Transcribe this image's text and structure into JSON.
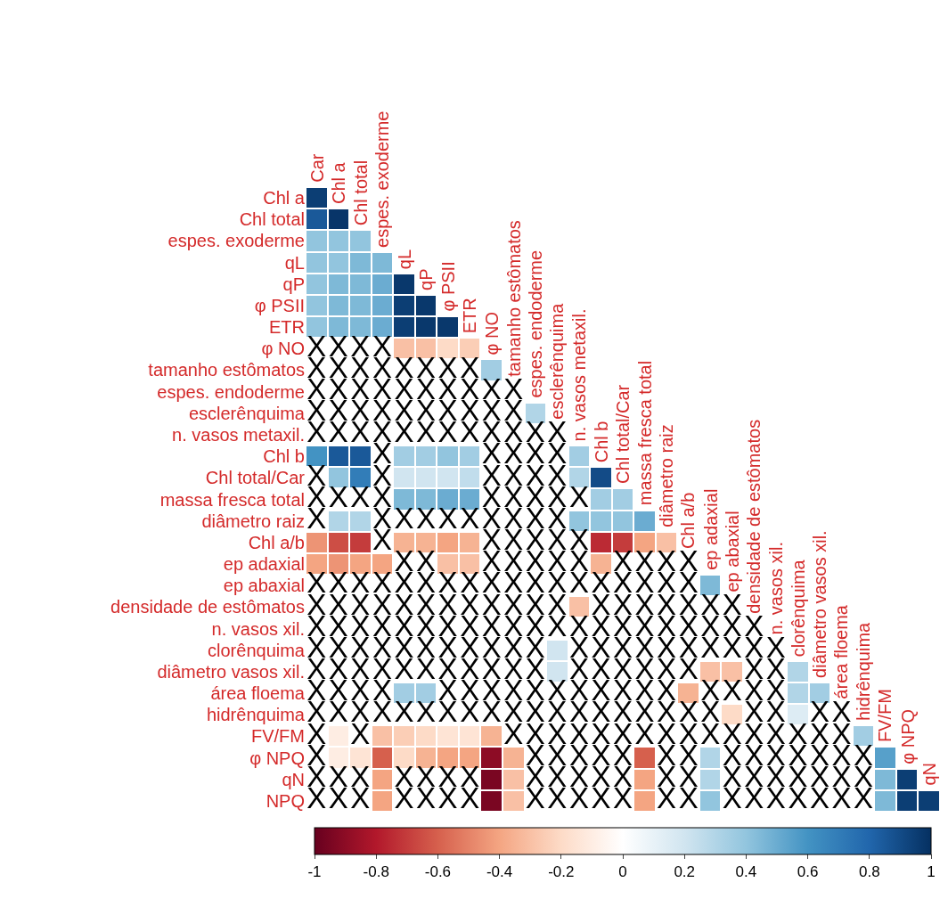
{
  "chart_data": {
    "type": "heatmap",
    "categories": [
      "Car",
      "Chl a",
      "Chl total",
      "espes. exoderme",
      "qL",
      "qP",
      "φ PSII",
      "ETR",
      "φ NO",
      "tamanho estômatos",
      "espes. endoderme",
      "esclerênquima",
      "n. vasos metaxil.",
      "Chl b",
      "Chl total/Car",
      "massa fresca total",
      "diâmetro raiz",
      "Chl a/b",
      "ep adaxial",
      "ep abaxial",
      "densidade de estômatos",
      "n. vasos xil.",
      "clorênquima",
      "diâmetro vasos xil.",
      "área floema",
      "hidrênquima",
      "FV/FM",
      "φ NPQ",
      "qN"
    ],
    "y_categories": [
      "Chl a",
      "Chl total",
      "espes. exoderme",
      "qL",
      "qP",
      "φ PSII",
      "ETR",
      "φ NO",
      "tamanho estômatos",
      "espes. endoderme",
      "esclerênquima",
      "n. vasos metaxil.",
      "Chl b",
      "Chl total/Car",
      "massa fresca total",
      "diâmetro raiz",
      "Chl a/b",
      "ep adaxial",
      "ep abaxial",
      "densidade de estômatos",
      "n. vasos xil.",
      "clorênquima",
      "diâmetro vasos xil.",
      "área floema",
      "hidrênquima",
      "FV/FM",
      "φ NPQ",
      "qN",
      "NPQ"
    ],
    "cells": [
      [
        0.95,
        null,
        null,
        null,
        null,
        null,
        null,
        null,
        null,
        null,
        null,
        null,
        null,
        null,
        null,
        null,
        null,
        null,
        null,
        null,
        null,
        null,
        null,
        null,
        null,
        null,
        null,
        null,
        null
      ],
      [
        0.85,
        0.98,
        null,
        null,
        null,
        null,
        null,
        null,
        null,
        null,
        null,
        null,
        null,
        null,
        null,
        null,
        null,
        null,
        null,
        null,
        null,
        null,
        null,
        null,
        null,
        null,
        null,
        null,
        null
      ],
      [
        0.4,
        0.4,
        0.4,
        null,
        null,
        null,
        null,
        null,
        null,
        null,
        null,
        null,
        null,
        null,
        null,
        null,
        null,
        null,
        null,
        null,
        null,
        null,
        null,
        null,
        null,
        null,
        null,
        null,
        null
      ],
      [
        0.4,
        0.4,
        0.45,
        0.45,
        null,
        null,
        null,
        null,
        null,
        null,
        null,
        null,
        null,
        null,
        null,
        null,
        null,
        null,
        null,
        null,
        null,
        null,
        null,
        null,
        null,
        null,
        null,
        null,
        null
      ],
      [
        0.4,
        0.45,
        0.45,
        0.5,
        0.97,
        null,
        null,
        null,
        null,
        null,
        null,
        null,
        null,
        null,
        null,
        null,
        null,
        null,
        null,
        null,
        null,
        null,
        null,
        null,
        null,
        null,
        null,
        null,
        null
      ],
      [
        0.4,
        0.45,
        0.45,
        0.5,
        0.95,
        0.97,
        null,
        null,
        null,
        null,
        null,
        null,
        null,
        null,
        null,
        null,
        null,
        null,
        null,
        null,
        null,
        null,
        null,
        null,
        null,
        null,
        null,
        null,
        null
      ],
      [
        0.4,
        0.45,
        0.45,
        0.5,
        0.95,
        0.97,
        0.97,
        null,
        null,
        null,
        null,
        null,
        null,
        null,
        null,
        null,
        null,
        null,
        null,
        null,
        null,
        null,
        null,
        null,
        null,
        null,
        null,
        null,
        null
      ],
      [
        null,
        null,
        null,
        null,
        -0.3,
        -0.3,
        -0.2,
        -0.25,
        null,
        null,
        null,
        null,
        null,
        null,
        null,
        null,
        null,
        null,
        null,
        null,
        null,
        null,
        null,
        null,
        null,
        null,
        null,
        null,
        null
      ],
      [
        null,
        null,
        null,
        null,
        null,
        null,
        null,
        null,
        0.35,
        null,
        null,
        null,
        null,
        null,
        null,
        null,
        null,
        null,
        null,
        null,
        null,
        null,
        null,
        null,
        null,
        null,
        null,
        null,
        null
      ],
      [
        null,
        null,
        null,
        null,
        null,
        null,
        null,
        null,
        null,
        null,
        null,
        null,
        null,
        null,
        null,
        null,
        null,
        null,
        null,
        null,
        null,
        null,
        null,
        null,
        null,
        null,
        null,
        null,
        null
      ],
      [
        null,
        null,
        null,
        null,
        null,
        null,
        null,
        null,
        null,
        null,
        0.3,
        null,
        null,
        null,
        null,
        null,
        null,
        null,
        null,
        null,
        null,
        null,
        null,
        null,
        null,
        null,
        null,
        null,
        null
      ],
      [
        null,
        null,
        null,
        null,
        null,
        null,
        null,
        null,
        null,
        null,
        null,
        null,
        null,
        null,
        null,
        null,
        null,
        null,
        null,
        null,
        null,
        null,
        null,
        null,
        null,
        null,
        null,
        null,
        null
      ],
      [
        0.6,
        0.85,
        0.85,
        null,
        0.35,
        0.35,
        0.4,
        0.35,
        null,
        null,
        null,
        null,
        0.35,
        null,
        null,
        null,
        null,
        null,
        null,
        null,
        null,
        null,
        null,
        null,
        null,
        null,
        null,
        null,
        null
      ],
      [
        null,
        0.4,
        0.7,
        null,
        0.2,
        0.2,
        0.2,
        0.25,
        null,
        null,
        null,
        null,
        0.3,
        0.9,
        null,
        null,
        null,
        null,
        null,
        null,
        null,
        null,
        null,
        null,
        null,
        null,
        null,
        null,
        null
      ],
      [
        null,
        null,
        null,
        null,
        0.45,
        0.45,
        0.5,
        0.5,
        null,
        null,
        null,
        null,
        null,
        0.35,
        0.35,
        null,
        null,
        null,
        null,
        null,
        null,
        null,
        null,
        null,
        null,
        null,
        null,
        null,
        null
      ],
      [
        null,
        0.3,
        0.3,
        null,
        null,
        null,
        null,
        null,
        null,
        null,
        null,
        null,
        0.4,
        0.4,
        0.4,
        0.5,
        null,
        null,
        null,
        null,
        null,
        null,
        null,
        null,
        null,
        null,
        null,
        null,
        null
      ],
      [
        -0.45,
        -0.65,
        -0.7,
        null,
        -0.35,
        -0.35,
        -0.4,
        -0.35,
        null,
        null,
        null,
        null,
        null,
        -0.75,
        -0.7,
        -0.4,
        -0.3,
        null,
        null,
        null,
        null,
        null,
        null,
        null,
        null,
        null,
        null,
        null,
        null
      ],
      [
        -0.4,
        -0.45,
        -0.4,
        -0.4,
        null,
        null,
        -0.3,
        -0.3,
        null,
        null,
        null,
        null,
        null,
        -0.35,
        null,
        null,
        null,
        null,
        null,
        null,
        null,
        null,
        null,
        null,
        null,
        null,
        null,
        null,
        null
      ],
      [
        null,
        null,
        null,
        null,
        null,
        null,
        null,
        null,
        null,
        null,
        null,
        null,
        null,
        null,
        null,
        null,
        null,
        null,
        0.45,
        null,
        null,
        null,
        null,
        null,
        null,
        null,
        null,
        null,
        null
      ],
      [
        null,
        null,
        null,
        null,
        null,
        null,
        null,
        null,
        null,
        null,
        null,
        null,
        -0.3,
        null,
        null,
        null,
        null,
        null,
        null,
        null,
        null,
        null,
        null,
        null,
        null,
        null,
        null,
        null,
        null
      ],
      [
        null,
        null,
        null,
        null,
        null,
        null,
        null,
        null,
        null,
        null,
        null,
        null,
        null,
        null,
        null,
        null,
        null,
        null,
        null,
        null,
        null,
        null,
        null,
        null,
        null,
        null,
        null,
        null,
        null
      ],
      [
        null,
        null,
        null,
        null,
        null,
        null,
        null,
        null,
        null,
        null,
        null,
        0.2,
        null,
        null,
        null,
        null,
        null,
        null,
        null,
        null,
        null,
        null,
        null,
        null,
        null,
        null,
        null,
        null,
        null
      ],
      [
        null,
        null,
        null,
        null,
        null,
        null,
        null,
        null,
        null,
        null,
        null,
        0.2,
        null,
        null,
        null,
        null,
        null,
        null,
        -0.3,
        -0.3,
        null,
        null,
        0.3,
        null,
        null,
        null,
        null,
        null,
        null
      ],
      [
        null,
        null,
        null,
        null,
        0.35,
        0.35,
        null,
        null,
        null,
        null,
        null,
        null,
        null,
        null,
        null,
        null,
        null,
        -0.35,
        null,
        null,
        null,
        null,
        0.3,
        0.35,
        null,
        null,
        null,
        null,
        null
      ],
      [
        null,
        null,
        null,
        null,
        null,
        null,
        null,
        null,
        null,
        null,
        null,
        null,
        null,
        null,
        null,
        null,
        null,
        null,
        null,
        -0.2,
        null,
        null,
        0.15,
        null,
        null,
        null,
        null,
        null,
        null
      ],
      [
        null,
        -0.1,
        null,
        -0.3,
        -0.25,
        -0.2,
        -0.15,
        -0.15,
        -0.35,
        null,
        null,
        null,
        null,
        null,
        null,
        null,
        null,
        null,
        null,
        null,
        null,
        null,
        null,
        null,
        null,
        0.35,
        null,
        null,
        null
      ],
      [
        null,
        -0.1,
        -0.15,
        -0.6,
        -0.2,
        -0.35,
        -0.4,
        -0.4,
        -0.9,
        -0.35,
        null,
        null,
        null,
        null,
        null,
        -0.6,
        null,
        null,
        0.3,
        null,
        null,
        null,
        null,
        null,
        null,
        null,
        0.55,
        null,
        null
      ],
      [
        null,
        null,
        null,
        -0.4,
        null,
        null,
        null,
        null,
        -0.95,
        -0.3,
        null,
        null,
        null,
        null,
        null,
        -0.4,
        null,
        null,
        0.3,
        null,
        null,
        null,
        null,
        null,
        null,
        null,
        0.45,
        0.95,
        null
      ],
      [
        null,
        null,
        null,
        -0.4,
        null,
        null,
        null,
        null,
        -0.95,
        -0.3,
        null,
        null,
        null,
        null,
        null,
        -0.4,
        null,
        null,
        0.4,
        null,
        null,
        null,
        null,
        null,
        null,
        null,
        0.45,
        0.95,
        0.95
      ]
    ],
    "cell_labels": [
      [
        null,
        null,
        null,
        null,
        null,
        null,
        null,
        null,
        null,
        null,
        null,
        null,
        null,
        null,
        null,
        null,
        null,
        null,
        null,
        null,
        null,
        null,
        null,
        null,
        null,
        null,
        null,
        null,
        null
      ],
      [
        null,
        null,
        null,
        null,
        null,
        null,
        null,
        null,
        null,
        null,
        null,
        null,
        null,
        null,
        null,
        null,
        null,
        null,
        null,
        null,
        null,
        null,
        null,
        null,
        null,
        null,
        null,
        null,
        null
      ],
      [
        null,
        null,
        null,
        null,
        null,
        null,
        null,
        null,
        null,
        null,
        null,
        null,
        null,
        null,
        null,
        null,
        null,
        null,
        null,
        null,
        null,
        null,
        null,
        null,
        null,
        null,
        null,
        null,
        null
      ],
      [
        null,
        null,
        null,
        null,
        null,
        null,
        null,
        null,
        null,
        null,
        null,
        null,
        null,
        null,
        null,
        null,
        null,
        null,
        null,
        null,
        null,
        null,
        null,
        null,
        null,
        null,
        null,
        null,
        null
      ],
      [
        null,
        null,
        null,
        null,
        null,
        null,
        null,
        null,
        null,
        null,
        null,
        null,
        null,
        null,
        null,
        null,
        null,
        null,
        null,
        null,
        null,
        null,
        null,
        null,
        null,
        null,
        null,
        null,
        null
      ],
      [
        null,
        null,
        null,
        null,
        null,
        null,
        null,
        null,
        null,
        null,
        null,
        null,
        null,
        null,
        null,
        null,
        null,
        null,
        null,
        null,
        null,
        null,
        null,
        null,
        null,
        null,
        null,
        null,
        null
      ],
      [
        null,
        null,
        null,
        null,
        null,
        null,
        null,
        null,
        null,
        null,
        null,
        null,
        null,
        null,
        null,
        null,
        null,
        null,
        null,
        null,
        null,
        null,
        null,
        null,
        null,
        null,
        null,
        null,
        null
      ],
      [
        "X",
        "X",
        "X",
        "X",
        null,
        null,
        null,
        null,
        null,
        null,
        null,
        null,
        null,
        null,
        null,
        null,
        null,
        null,
        null,
        null,
        null,
        null,
        null,
        null,
        null,
        null,
        null,
        null,
        null
      ],
      [
        "X",
        "X",
        "X",
        "X",
        "X",
        "X",
        "X",
        "X",
        null,
        null,
        null,
        null,
        null,
        null,
        null,
        null,
        null,
        null,
        null,
        null,
        null,
        null,
        null,
        null,
        null,
        null,
        null,
        null,
        null
      ],
      [
        "X",
        "X",
        "X",
        "X",
        "X",
        "X",
        "X",
        "X",
        "X",
        "X",
        null,
        null,
        null,
        null,
        null,
        null,
        null,
        null,
        null,
        null,
        null,
        null,
        null,
        null,
        null,
        null,
        null,
        null,
        null
      ],
      [
        "X",
        "X",
        "X",
        "X",
        "X",
        "X",
        "X",
        "X",
        "X",
        "X",
        null,
        null,
        null,
        null,
        null,
        null,
        null,
        null,
        null,
        null,
        null,
        null,
        null,
        null,
        null,
        null,
        null,
        null,
        null
      ],
      [
        "X",
        "X",
        "X",
        "X",
        "X",
        "X",
        "X",
        "X",
        "X",
        "X",
        "X",
        "X",
        null,
        null,
        null,
        null,
        null,
        null,
        null,
        null,
        null,
        null,
        null,
        null,
        null,
        null,
        null,
        null,
        null
      ],
      [
        null,
        null,
        null,
        "X",
        null,
        null,
        null,
        null,
        "X",
        "X",
        "X",
        "X",
        null,
        null,
        null,
        null,
        null,
        null,
        null,
        null,
        null,
        null,
        null,
        null,
        null,
        null,
        null,
        null,
        null
      ],
      [
        "X",
        null,
        null,
        "X",
        null,
        null,
        null,
        null,
        "X",
        "X",
        "X",
        "X",
        null,
        null,
        null,
        null,
        null,
        null,
        null,
        null,
        null,
        null,
        null,
        null,
        null,
        null,
        null,
        null,
        null
      ],
      [
        "X",
        "X",
        "X",
        "X",
        null,
        null,
        null,
        null,
        "X",
        "X",
        "X",
        "X",
        "X",
        null,
        null,
        null,
        null,
        null,
        null,
        null,
        null,
        null,
        null,
        null,
        null,
        null,
        null,
        null,
        null
      ],
      [
        "X",
        null,
        null,
        "X",
        "X",
        "X",
        "X",
        "X",
        "X",
        "X",
        "X",
        "X",
        null,
        null,
        null,
        null,
        null,
        null,
        null,
        null,
        null,
        null,
        null,
        null,
        null,
        null,
        null,
        null,
        null
      ],
      [
        null,
        null,
        null,
        "X",
        null,
        null,
        null,
        null,
        "X",
        "X",
        "X",
        "X",
        "X",
        null,
        null,
        null,
        null,
        null,
        null,
        null,
        null,
        null,
        null,
        null,
        null,
        null,
        null,
        null,
        null
      ],
      [
        null,
        null,
        null,
        null,
        "X",
        "X",
        null,
        null,
        "X",
        "X",
        "X",
        "X",
        "X",
        null,
        "X",
        "X",
        "X",
        "X",
        null,
        null,
        null,
        null,
        null,
        null,
        null,
        null,
        null,
        null,
        null
      ],
      [
        "X",
        "X",
        "X",
        "X",
        "X",
        "X",
        "X",
        "X",
        "X",
        "X",
        "X",
        "X",
        "X",
        "X",
        "X",
        "X",
        "X",
        "X",
        null,
        null,
        null,
        null,
        null,
        null,
        null,
        null,
        null,
        null,
        null
      ],
      [
        "X",
        "X",
        "X",
        "X",
        "X",
        "X",
        "X",
        "X",
        "X",
        "X",
        "X",
        "X",
        null,
        "X",
        "X",
        "X",
        "X",
        "X",
        "X",
        "X",
        null,
        null,
        null,
        null,
        null,
        null,
        null,
        null,
        null
      ],
      [
        "X",
        "X",
        "X",
        "X",
        "X",
        "X",
        "X",
        "X",
        "X",
        "X",
        "X",
        "X",
        "X",
        "X",
        "X",
        "X",
        "X",
        "X",
        "X",
        "X",
        "X",
        null,
        null,
        null,
        null,
        null,
        null,
        null,
        null
      ],
      [
        "X",
        "X",
        "X",
        "X",
        "X",
        "X",
        "X",
        "X",
        "X",
        "X",
        "X",
        null,
        "X",
        "X",
        "X",
        "X",
        "X",
        "X",
        "X",
        "X",
        "X",
        "X",
        null,
        null,
        null,
        null,
        null,
        null,
        null
      ],
      [
        "X",
        "X",
        "X",
        "X",
        "X",
        "X",
        "X",
        "X",
        "X",
        "X",
        "X",
        null,
        "X",
        "X",
        "X",
        "X",
        "X",
        "X",
        null,
        null,
        "X",
        "X",
        null,
        null,
        null,
        null,
        null,
        null,
        null
      ],
      [
        "X",
        "X",
        "X",
        "X",
        null,
        null,
        "X",
        "X",
        "X",
        "X",
        "X",
        "X",
        "X",
        "X",
        "X",
        "X",
        "X",
        null,
        "X",
        "X",
        "X",
        "X",
        null,
        null,
        null,
        null,
        null,
        null,
        null
      ],
      [
        "X",
        "X",
        "X",
        "X",
        "X",
        "X",
        "X",
        "X",
        "X",
        "X",
        "X",
        "X",
        "X",
        "X",
        "X",
        "X",
        "X",
        "X",
        "X",
        null,
        "X",
        "X",
        null,
        "X",
        "X",
        null,
        null,
        null,
        null
      ],
      [
        "X",
        null,
        "X",
        null,
        null,
        null,
        null,
        null,
        null,
        "X",
        "X",
        "X",
        "X",
        "X",
        "X",
        "X",
        "X",
        "X",
        "X",
        "X",
        "X",
        "X",
        "X",
        "X",
        "X",
        null,
        null,
        null,
        null
      ],
      [
        "X",
        null,
        null,
        null,
        null,
        null,
        null,
        null,
        null,
        null,
        "X",
        "X",
        "X",
        "X",
        "X",
        null,
        "X",
        "X",
        null,
        "X",
        "X",
        "X",
        "X",
        "X",
        "X",
        "X",
        null,
        null,
        null
      ],
      [
        "X",
        "X",
        "X",
        null,
        "X",
        "X",
        "X",
        "X",
        null,
        null,
        "X",
        "X",
        "X",
        "X",
        "X",
        null,
        "X",
        "X",
        null,
        "X",
        "X",
        "X",
        "X",
        "X",
        "X",
        "X",
        null,
        null,
        null
      ],
      [
        "X",
        "X",
        "X",
        null,
        "X",
        "X",
        "X",
        "X",
        null,
        null,
        "X",
        "X",
        "X",
        "X",
        "X",
        null,
        "X",
        "X",
        null,
        "X",
        "X",
        "X",
        "X",
        "X",
        "X",
        "X",
        null,
        null,
        null
      ]
    ],
    "clim": [
      -1,
      1
    ],
    "cticks": [
      -1,
      -0.8,
      -0.6,
      -0.4,
      -0.2,
      0,
      0.2,
      0.4,
      0.6,
      0.8,
      1
    ]
  }
}
